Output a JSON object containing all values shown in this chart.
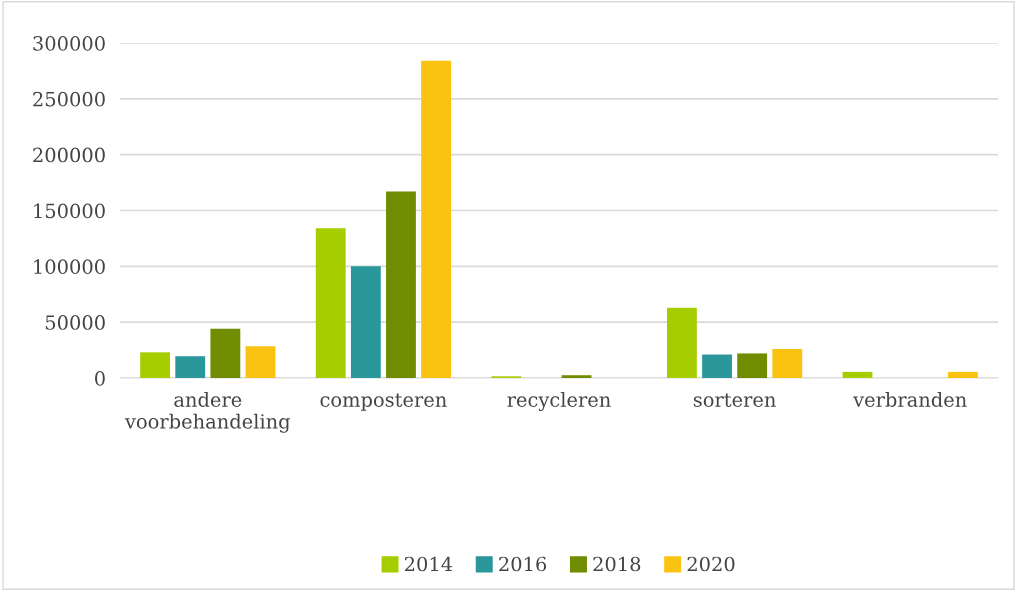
{
  "chart_data": {
    "type": "bar",
    "categories": [
      "andere\nvoorbehandeling",
      "composteren",
      "recycleren",
      "sorteren",
      "verbranden"
    ],
    "series": [
      {
        "name": "2014",
        "color": "#a5cd00",
        "values": [
          23000,
          134000,
          1500,
          63000,
          5500
        ]
      },
      {
        "name": "2016",
        "color": "#2a979b",
        "values": [
          19500,
          100000,
          0,
          21000,
          0
        ]
      },
      {
        "name": "2018",
        "color": "#708c00",
        "values": [
          44000,
          167000,
          2500,
          22000,
          0
        ]
      },
      {
        "name": "2020",
        "color": "#fac312",
        "values": [
          28500,
          284000,
          0,
          26000,
          5500
        ]
      }
    ],
    "ylim": [
      0,
      300000
    ],
    "yticks": [
      0,
      50000,
      100000,
      150000,
      200000,
      250000,
      300000
    ],
    "grid": "y",
    "legend": "bottom"
  }
}
